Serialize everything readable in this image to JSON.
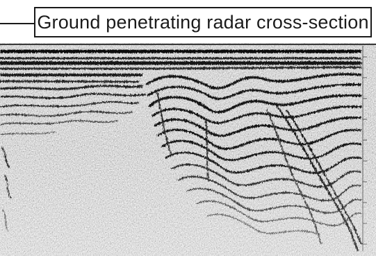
{
  "figure": {
    "title": "Ground penetrating radar cross-section",
    "image_kind": "ground-penetrating-radar-radargram",
    "colors": {
      "background": "#ffffff",
      "grain_base": "#c8c8c8",
      "reflector": "#151515",
      "frame_line": "#1a1a1a"
    }
  }
}
